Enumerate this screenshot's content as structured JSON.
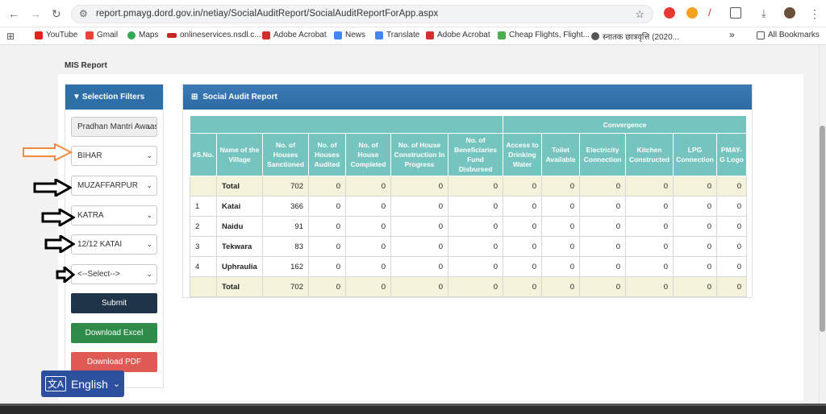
{
  "browser": {
    "url": "report.pmayg.dord.gov.in/netiay/SocialAuditReport/SocialAuditReportForApp.aspx",
    "bookmarks": [
      "YouTube",
      "Gmail",
      "Maps",
      "onlineservices.nsdl.c...",
      "Adobe Acrobat",
      "News",
      "Translate",
      "Adobe Acrobat",
      "Cheap Flights, Flight...",
      "स्नातक छात्रवृत्ति (2020..."
    ],
    "all_bookmarks": "All Bookmarks",
    "more": "»"
  },
  "page": {
    "title": "MIS Report",
    "filters_title": "Selection Filters",
    "filters": [
      "Pradhan Mantri Awaas Yojana",
      "BIHAR",
      "MUZAFFARPUR",
      "KATRA",
      "12/12 KATAI",
      "<--Select-->"
    ],
    "submit": "Submit",
    "excel": "Download Excel",
    "pdf": "Download PDF",
    "report_title": "Social Audit Report",
    "language": "English"
  },
  "table": {
    "convergence": "Convergence",
    "headers": [
      "#S.No.",
      "Name of the Village",
      "No. of Houses Sanctioned",
      "No. of Houses Audited",
      "No. of House Completed",
      "No. of House Construction In Progress",
      "No. of Beneficiaries Fund Disbursed",
      "Access to Drinking Water",
      "Toilet Available",
      "Electricity Connection",
      "Kitchen Constructed",
      "LPG Connection",
      "PMAY-G Logo"
    ],
    "rows": [
      [
        "",
        "Total",
        "702",
        "0",
        "0",
        "0",
        "0",
        "0",
        "0",
        "0",
        "0",
        "0",
        "0"
      ],
      [
        "1",
        "Katai",
        "366",
        "0",
        "0",
        "0",
        "0",
        "0",
        "0",
        "0",
        "0",
        "0",
        "0"
      ],
      [
        "2",
        "Naidu",
        "91",
        "0",
        "0",
        "0",
        "0",
        "0",
        "0",
        "0",
        "0",
        "0",
        "0"
      ],
      [
        "3",
        "Tekwara",
        "83",
        "0",
        "0",
        "0",
        "0",
        "0",
        "0",
        "0",
        "0",
        "0",
        "0"
      ],
      [
        "4",
        "Uphraulia",
        "162",
        "0",
        "0",
        "0",
        "0",
        "0",
        "0",
        "0",
        "0",
        "0",
        "0"
      ],
      [
        "",
        "Total",
        "702",
        "0",
        "0",
        "0",
        "0",
        "0",
        "0",
        "0",
        "0",
        "0",
        "0"
      ]
    ]
  },
  "colors": {
    "accent": "#2f6fa7",
    "table_header": "#76c4bf",
    "submit": "#1f3349",
    "excel": "#2e8b4a",
    "pdf": "#e05a55",
    "total_row": "#f3f3dc",
    "orange_arrow": "#f08a3c"
  }
}
